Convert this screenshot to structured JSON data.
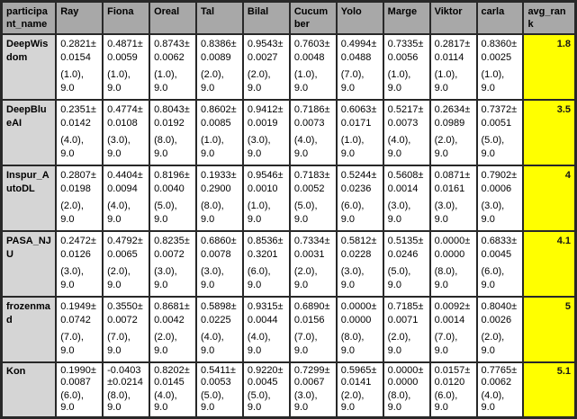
{
  "colors": {
    "header_bg": "#a8a8a8",
    "name_column_bg": "#d5d5d5",
    "value_cell_bg": "#ffffff",
    "avg_rank_bg": "#ffff00",
    "border": "#282828",
    "text": "#000000"
  },
  "chart_data": {
    "type": "table",
    "columns": [
      "participant_name",
      "Ray",
      "Fiona",
      "Oreal",
      "Tal",
      "Bilal",
      "Cucumber",
      "Yolo",
      "Marge",
      "Viktor",
      "carla",
      "avg_rank"
    ],
    "rows": [
      {
        "participant_name": "DeepWisdom",
        "values": [
          "0.2821± 0.0154 (1.0), 9.0",
          "0.4871± 0.0059 (1.0), 9.0",
          "0.8743± 0.0062 (1.0), 9.0",
          "0.8386± 0.0089 (2.0), 9.0",
          "0.9543± 0.0027 (2.0), 9.0",
          "0.7603± 0.0048 (1.0), 9.0",
          "0.4994± 0.0488 (7.0), 9.0",
          "0.7335± 0.0056 (1.0), 9.0",
          "0.2817± 0.0114 (1.0), 9.0",
          "0.8360± 0.0025 (1.0), 9.0"
        ],
        "avg_rank": "1.8"
      },
      {
        "participant_name": "DeepBlueAI",
        "values": [
          "0.2351± 0.0142 (4.0), 9.0",
          "0.4774± 0.0108 (3.0), 9.0",
          "0.8043± 0.0192 (8.0), 9.0",
          "0.8602± 0.0085 (1.0), 9.0",
          "0.9412± 0.0019 (3.0), 9.0",
          "0.7186± 0.0073 (4.0), 9.0",
          "0.6063± 0.0171 (1.0), 9.0",
          "0.5217± 0.0073 (4.0), 9.0",
          "0.2634± 0.0989 (2.0), 9.0",
          "0.7372± 0.0051 (5.0), 9.0"
        ],
        "avg_rank": "3.5"
      },
      {
        "participant_name": "Inspur_AutoDL",
        "values": [
          "0.2807± 0.0198 (2.0), 9.0",
          "0.4404± 0.0094 (4.0), 9.0",
          "0.8196± 0.0040 (5.0), 9.0",
          "0.1933± 0.2900 (8.0), 9.0",
          "0.9546± 0.0010 (1.0), 9.0",
          "0.7183± 0.0052 (5.0), 9.0",
          "0.5244± 0.0236 (6.0), 9.0",
          "0.5608± 0.0014 (3.0), 9.0",
          "0.0871± 0.0161 (3.0), 9.0",
          "0.7902± 0.0006 (3.0), 9.0"
        ],
        "avg_rank": "4"
      },
      {
        "participant_name": "PASA_NJU",
        "values": [
          "0.2472± 0.0126 (3.0), 9.0",
          "0.4792± 0.0065 (2.0), 9.0",
          "0.8235± 0.0072 (3.0), 9.0",
          "0.6860± 0.0078 (3.0), 9.0",
          "0.8536± 0.3201 (6.0), 9.0",
          "0.7334± 0.0031 (2.0), 9.0",
          "0.5812± 0.0228 (3.0), 9.0",
          "0.5135± 0.0246 (5.0), 9.0",
          "0.0000± 0.0000 (8.0), 9.0",
          "0.6833± 0.0045 (6.0), 9.0"
        ],
        "avg_rank": "4.1"
      },
      {
        "participant_name": "frozenmad",
        "values": [
          "0.1949± 0.0742 (7.0), 9.0",
          "0.3550± 0.0072 (7.0), 9.0",
          "0.8681± 0.0042 (2.0), 9.0",
          "0.5898± 0.0225 (4.0), 9.0",
          "0.9315± 0.0044 (4.0), 9.0",
          "0.6890± 0.0156 (7.0), 9.0",
          "0.0000± 0.0000 (8.0), 9.0",
          "0.7185± 0.0071 (2.0), 9.0",
          "0.0092± 0.0014 (7.0), 9.0",
          "0.8040± 0.0026 (2.0), 9.0"
        ],
        "avg_rank": "5"
      },
      {
        "participant_name": "Kon",
        "values": [
          "0.1990± 0.0087 (6.0), 9.0",
          "-0.0403 ±0.0214 (8.0), 9.0",
          "0.8202± 0.0145 (4.0), 9.0",
          "0.5411± 0.0053 (5.0), 9.0",
          "0.9220± 0.0045 (5.0), 9.0",
          "0.7299± 0.0067 (3.0), 9.0",
          "0.5965± 0.0141 (2.0), 9.0",
          "0.0000± 0.0000 (8.0), 9.0",
          "0.0157± 0.0120 (6.0), 9.0",
          "0.7765± 0.0062 (4.0), 9.0"
        ],
        "avg_rank": "5.1"
      }
    ]
  }
}
